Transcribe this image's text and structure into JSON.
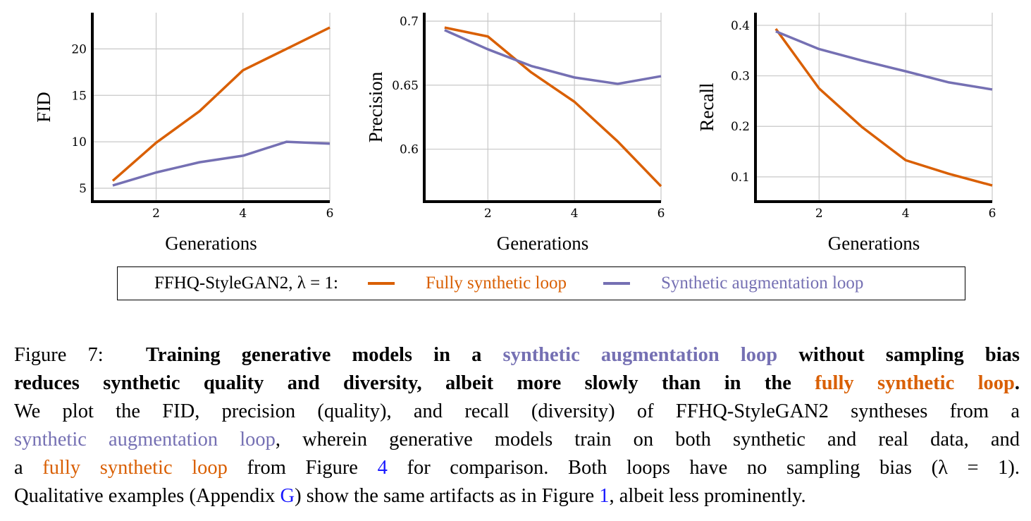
{
  "colors": {
    "fully_synthetic": "#D95F02",
    "augmentation": "#7570B3",
    "link": "#1a1aff"
  },
  "chart_data": [
    {
      "type": "line",
      "xlabel": "Generations",
      "ylabel": "FID",
      "x": [
        1,
        2,
        3,
        4,
        5,
        6
      ],
      "xlim": [
        0.53,
        6
      ],
      "ylim": [
        3.56,
        23.9
      ],
      "xticks": [
        2,
        4,
        6
      ],
      "yticks": [
        5,
        10,
        15,
        20
      ],
      "grid": true,
      "series": [
        {
          "name": "Fully synthetic loop",
          "values": [
            5.8,
            9.9,
            13.3,
            17.7,
            20.0,
            22.3
          ]
        },
        {
          "name": "Synthetic augmentation loop",
          "values": [
            5.3,
            6.7,
            7.8,
            8.5,
            10.0,
            9.8
          ]
        }
      ]
    },
    {
      "type": "line",
      "xlabel": "Generations",
      "ylabel": "Precision",
      "x": [
        1,
        2,
        3,
        4,
        5,
        6
      ],
      "xlim": [
        0.53,
        6
      ],
      "ylim": [
        0.559,
        0.7066
      ],
      "xticks": [
        2,
        4,
        6
      ],
      "yticks": [
        0.6,
        0.65,
        0.7
      ],
      "grid": true,
      "series": [
        {
          "name": "Fully synthetic loop",
          "values": [
            0.695,
            0.688,
            0.66,
            0.637,
            0.606,
            0.571
          ]
        },
        {
          "name": "Synthetic augmentation loop",
          "values": [
            0.693,
            0.678,
            0.665,
            0.656,
            0.651,
            0.657
          ]
        }
      ]
    },
    {
      "type": "line",
      "xlabel": "Generations",
      "ylabel": "Recall",
      "x": [
        1,
        2,
        3,
        4,
        5,
        6
      ],
      "xlim": [
        0.53,
        6
      ],
      "ylim": [
        0.051,
        0.425
      ],
      "xticks": [
        2,
        4,
        6
      ],
      "yticks": [
        0.1,
        0.2,
        0.3,
        0.4
      ],
      "grid": true,
      "series": [
        {
          "name": "Fully synthetic loop",
          "values": [
            0.393,
            0.275,
            0.198,
            0.133,
            0.106,
            0.083
          ]
        },
        {
          "name": "Synthetic augmentation loop",
          "values": [
            0.388,
            0.353,
            0.33,
            0.309,
            0.287,
            0.273
          ]
        }
      ]
    }
  ],
  "legend": {
    "prefix": "FFHQ-StyleGAN2, λ = 1:",
    "items": [
      "Fully synthetic loop",
      "Synthetic augmentation loop"
    ],
    "placement": "bottom"
  },
  "caption": {
    "label": "Figure 7:",
    "b1": "Training generative models in a",
    "b_aug": "synthetic augmentation loop",
    "b2": "without sampling bias",
    "b3": "reduces synthetic quality and diversity, albeit more slowly than in the",
    "b_full": "fully synthetic loop",
    "b4": ".",
    "t1": "We plot the FID, precision (quality), and recall (diversity) of FFHQ-StyleGAN2 syntheses from a",
    "t_aug": "synthetic augmentation loop",
    "t2": ", wherein generative models train on both synthetic and real data, and",
    "t3": "a",
    "t_full": "fully synthetic loop",
    "t4": "from Figure",
    "ref4": "4",
    "t5": "for comparison.  Both loops have no sampling bias (λ = 1).",
    "t6": "Qualitative examples (Appendix",
    "refG": "G",
    "t7": ") show the same artifacts as in Figure",
    "ref1": "1",
    "t8": ", albeit less prominently."
  }
}
